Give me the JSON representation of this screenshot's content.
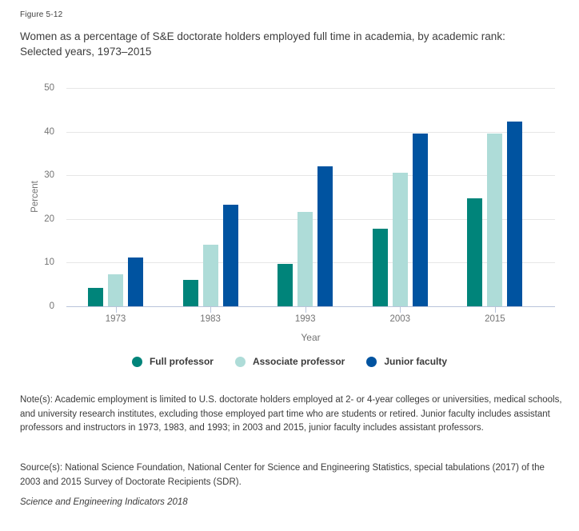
{
  "figure_label": "Figure 5-12",
  "title_line1": "Women as a percentage of S&E doctorate holders employed full time in academia, by academic rank:",
  "title_line2": "Selected years, 1973–2015",
  "chart_data": {
    "type": "bar",
    "categories": [
      "1973",
      "1983",
      "1993",
      "2003",
      "2015"
    ],
    "series": [
      {
        "name": "Full professor",
        "color": "#00847a",
        "values": [
          4.3,
          6.0,
          9.7,
          17.7,
          24.7
        ]
      },
      {
        "name": "Associate professor",
        "color": "#aedcd8",
        "values": [
          7.4,
          14.1,
          21.6,
          30.6,
          39.6
        ]
      },
      {
        "name": "Junior faculty",
        "color": "#0053a0",
        "values": [
          11.2,
          23.3,
          32.1,
          39.6,
          42.4
        ]
      }
    ],
    "xlabel": "Year",
    "ylabel": "Percent",
    "ylim": [
      0,
      50
    ],
    "yticks": [
      0,
      10,
      20,
      30,
      40,
      50
    ],
    "grid": true,
    "legend_position": "bottom"
  },
  "notes": "Note(s): Academic employment is limited to U.S. doctorate holders employed at 2- or 4-year colleges or universities, medical schools, and university research institutes, excluding those employed part time who are students or retired. Junior faculty includes assistant professors and instructors in 1973, 1983, and 1993; in 2003 and 2015, junior faculty includes assistant professors.",
  "source": "Source(s): National Science Foundation, National Center for Science and Engineering Statistics, special tabulations (2017) of the 2003 and 2015 Survey of Doctorate Recipients (SDR).",
  "attribution": "Science and Engineering Indicators 2018"
}
